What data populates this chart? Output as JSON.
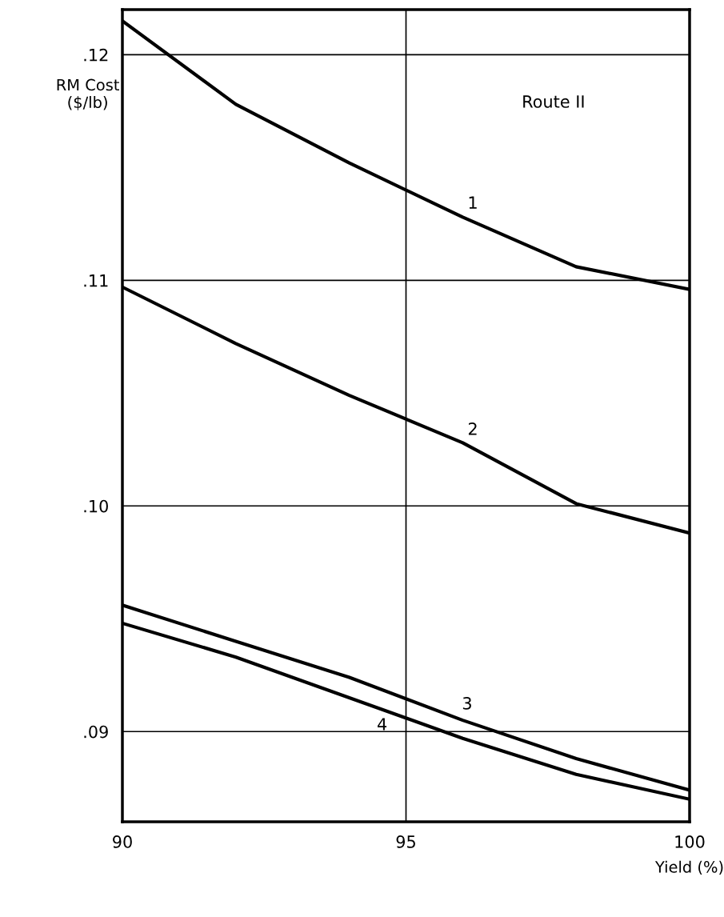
{
  "chart_data": {
    "type": "line",
    "ylabel": "RM Cost\n($/lb)",
    "xlabel": "Yield (%)",
    "x": [
      90,
      92,
      94,
      96,
      98,
      100
    ],
    "series": [
      {
        "name": "1",
        "color": "#000000",
        "values": [
          0.1215,
          0.1178,
          0.1152,
          0.1128,
          0.1106,
          0.1096
        ]
      },
      {
        "name": "2",
        "color": "#000000",
        "values": [
          0.1097,
          0.1072,
          0.1049,
          0.1028,
          0.1001,
          0.0988
        ]
      },
      {
        "name": "3",
        "color": "#000000",
        "values": [
          0.0956,
          0.094,
          0.0924,
          0.0905,
          0.0888,
          0.0874
        ]
      },
      {
        "name": "4",
        "color": "#000000",
        "values": [
          0.0948,
          0.0933,
          0.0915,
          0.0897,
          0.0881,
          0.087
        ]
      }
    ],
    "xlim": [
      90,
      100
    ],
    "xticks": [
      90,
      95,
      100
    ],
    "ylim": [
      0.086,
      0.122
    ],
    "yticks": [
      {
        "value": 0.09,
        "label": ".09"
      },
      {
        "value": 0.1,
        "label": ".10"
      },
      {
        "value": 0.11,
        "label": ".11"
      },
      {
        "value": 0.12,
        "label": ".12"
      }
    ],
    "grid": true,
    "marker": "none",
    "line_style": "solid",
    "annotations": [
      "Route II"
    ]
  }
}
